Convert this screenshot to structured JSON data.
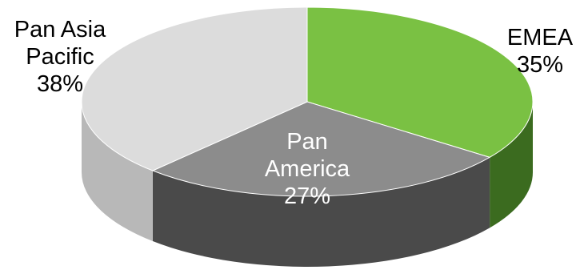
{
  "chart_data": {
    "type": "pie",
    "style": "3d",
    "title": "",
    "legend": "none",
    "categories": [
      "EMEA",
      "Pan America",
      "Pan Asia Pacific"
    ],
    "values": [
      35,
      27,
      38
    ],
    "label_lines": [
      [
        "EMEA",
        "35%"
      ],
      [
        "Pan",
        "America",
        "27%"
      ],
      [
        "Pan Asia",
        "Pacific",
        "38%"
      ]
    ],
    "colors": [
      "#7ac143",
      "#8c8c8c",
      "#dcdcdc"
    ],
    "side_colors": [
      "#3b6b1f",
      "#4a4a4a",
      "#b8b8b8"
    ],
    "label_colors": [
      "#000000",
      "#ffffff",
      "#000000"
    ]
  }
}
